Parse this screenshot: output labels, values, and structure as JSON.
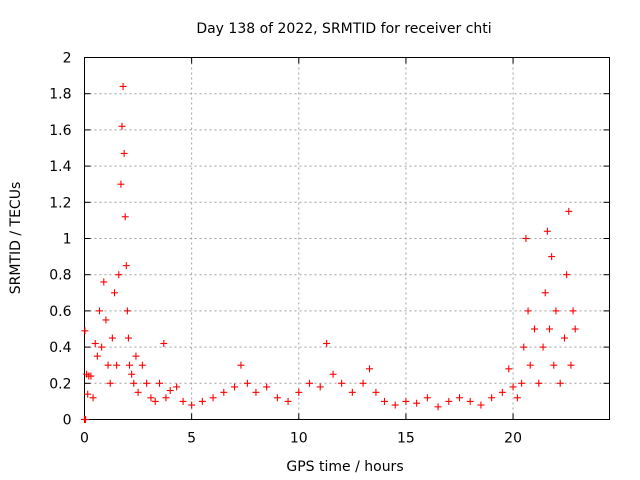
{
  "chart_data": {
    "type": "scatter",
    "title": "Day 138 of 2022, SRMTID for receiver chti",
    "xlabel": "GPS time / hours",
    "ylabel": "SRMTID / TECUs",
    "xlim": [
      0,
      24.5
    ],
    "ylim": [
      0,
      2
    ],
    "xticks": [
      0,
      5,
      10,
      15,
      20
    ],
    "xtick_labels": [
      "0",
      "5",
      "10",
      "15",
      "20"
    ],
    "yticks": [
      0,
      0.2,
      0.4,
      0.6,
      0.8,
      1,
      1.2,
      1.4,
      1.6,
      1.8,
      2
    ],
    "ytick_labels": [
      "0",
      "0.2",
      "0.4",
      "0.6",
      "0.8",
      "1",
      "1.2",
      "1.4",
      "1.6",
      "1.8",
      "2"
    ],
    "grid": true,
    "marker": "+",
    "series": [
      {
        "name": "SRMTID",
        "color": "#ff0000",
        "x": [
          0.0,
          0.02,
          0.05,
          0.1,
          0.15,
          0.2,
          0.3,
          0.4,
          0.5,
          0.6,
          0.7,
          0.8,
          0.9,
          1.0,
          1.1,
          1.2,
          1.3,
          1.4,
          1.5,
          1.6,
          1.7,
          1.75,
          1.8,
          1.85,
          1.9,
          1.95,
          2.0,
          2.05,
          2.1,
          2.2,
          2.3,
          2.4,
          2.5,
          2.7,
          2.9,
          3.1,
          3.3,
          3.5,
          3.7,
          3.8,
          4.0,
          4.3,
          4.6,
          5.0,
          5.5,
          6.0,
          6.5,
          7.0,
          7.3,
          7.6,
          8.0,
          8.5,
          9.0,
          9.5,
          10.0,
          10.5,
          11.0,
          11.3,
          11.6,
          12.0,
          12.5,
          13.0,
          13.3,
          13.6,
          14.0,
          14.5,
          15.0,
          15.5,
          16.0,
          16.5,
          17.0,
          17.5,
          18.0,
          18.5,
          19.0,
          19.5,
          19.8,
          20.0,
          20.2,
          20.4,
          20.5,
          20.6,
          20.7,
          20.8,
          21.0,
          21.2,
          21.4,
          21.5,
          21.6,
          21.7,
          21.8,
          21.9,
          22.0,
          22.2,
          22.4,
          22.5,
          22.6,
          22.7,
          22.8,
          22.9
        ],
        "y": [
          0.0,
          0.49,
          0.0,
          0.25,
          0.14,
          0.24,
          0.24,
          0.12,
          0.42,
          0.35,
          0.6,
          0.4,
          0.76,
          0.55,
          0.3,
          0.2,
          0.45,
          0.7,
          0.3,
          0.8,
          1.3,
          1.62,
          1.84,
          1.47,
          1.12,
          0.85,
          0.6,
          0.45,
          0.3,
          0.25,
          0.2,
          0.35,
          0.15,
          0.3,
          0.2,
          0.12,
          0.1,
          0.2,
          0.42,
          0.12,
          0.16,
          0.18,
          0.1,
          0.08,
          0.1,
          0.12,
          0.15,
          0.18,
          0.3,
          0.2,
          0.15,
          0.18,
          0.12,
          0.1,
          0.15,
          0.2,
          0.18,
          0.42,
          0.25,
          0.2,
          0.15,
          0.2,
          0.28,
          0.15,
          0.1,
          0.08,
          0.1,
          0.09,
          0.12,
          0.07,
          0.1,
          0.12,
          0.1,
          0.08,
          0.12,
          0.15,
          0.28,
          0.18,
          0.12,
          0.2,
          0.4,
          1.0,
          0.6,
          0.3,
          0.5,
          0.2,
          0.4,
          0.7,
          1.04,
          0.5,
          0.9,
          0.3,
          0.6,
          0.2,
          0.45,
          0.8,
          1.15,
          0.3,
          0.6,
          0.5
        ]
      }
    ]
  }
}
